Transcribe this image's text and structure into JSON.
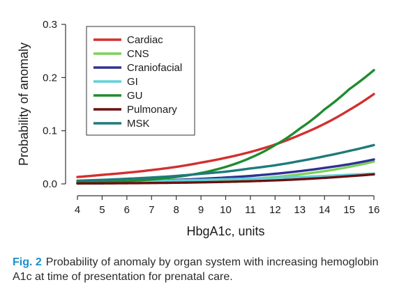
{
  "chart_data": {
    "type": "line",
    "title": "",
    "xlabel": "HbgA1c, units",
    "ylabel": "Probability of anomaly",
    "xlim": [
      4,
      16
    ],
    "ylim": [
      0,
      0.3
    ],
    "x_ticks": [
      "4",
      "5",
      "6",
      "7",
      "8",
      "9",
      "10",
      "11",
      "12",
      "13",
      "14",
      "15",
      "16"
    ],
    "y_ticks": [
      "0.0",
      "0.1",
      "0.2",
      "0.3"
    ],
    "legend_position": "top-left",
    "x": [
      4,
      5,
      6,
      7,
      8,
      9,
      10,
      11,
      12,
      13,
      14,
      15,
      16
    ],
    "series": [
      {
        "name": "Cardiac",
        "color": "#d32f2f",
        "values": [
          0.013,
          0.017,
          0.021,
          0.026,
          0.032,
          0.04,
          0.049,
          0.06,
          0.074,
          0.092,
          0.113,
          0.139,
          0.169
        ]
      },
      {
        "name": "CNS",
        "color": "#7ed05a",
        "values": [
          0.001,
          0.0013,
          0.0018,
          0.0025,
          0.0035,
          0.005,
          0.007,
          0.0095,
          0.013,
          0.018,
          0.024,
          0.032,
          0.042
        ]
      },
      {
        "name": "Craniofacial",
        "color": "#2e3192",
        "values": [
          0.003,
          0.0038,
          0.0048,
          0.006,
          0.0075,
          0.0095,
          0.012,
          0.015,
          0.019,
          0.024,
          0.03,
          0.037,
          0.046
        ]
      },
      {
        "name": "GI",
        "color": "#5fd0d8",
        "values": [
          0.004,
          0.0045,
          0.005,
          0.0058,
          0.0066,
          0.0076,
          0.0088,
          0.01,
          0.0115,
          0.013,
          0.015,
          0.0172,
          0.0195
        ]
      },
      {
        "name": "GU",
        "color": "#1e8c2e",
        "values": [
          0.002,
          0.0033,
          0.0052,
          0.0083,
          0.013,
          0.0205,
          0.032,
          0.049,
          0.073,
          0.104,
          0.14,
          0.178,
          0.214
        ]
      },
      {
        "name": "Pulmonary",
        "color": "#6b0f0f",
        "values": [
          0.0008,
          0.001,
          0.0013,
          0.0017,
          0.0022,
          0.0029,
          0.0038,
          0.005,
          0.0066,
          0.0087,
          0.0113,
          0.0145,
          0.018
        ]
      },
      {
        "name": "MSK",
        "color": "#1f7a7a",
        "values": [
          0.006,
          0.0076,
          0.0096,
          0.012,
          0.015,
          0.019,
          0.023,
          0.029,
          0.035,
          0.043,
          0.052,
          0.062,
          0.073
        ]
      }
    ]
  },
  "caption": {
    "label": "Fig. 2",
    "text": "Probability of anomaly by organ system with increasing hemoglobin A1c at time of presentation for prenatal care."
  }
}
